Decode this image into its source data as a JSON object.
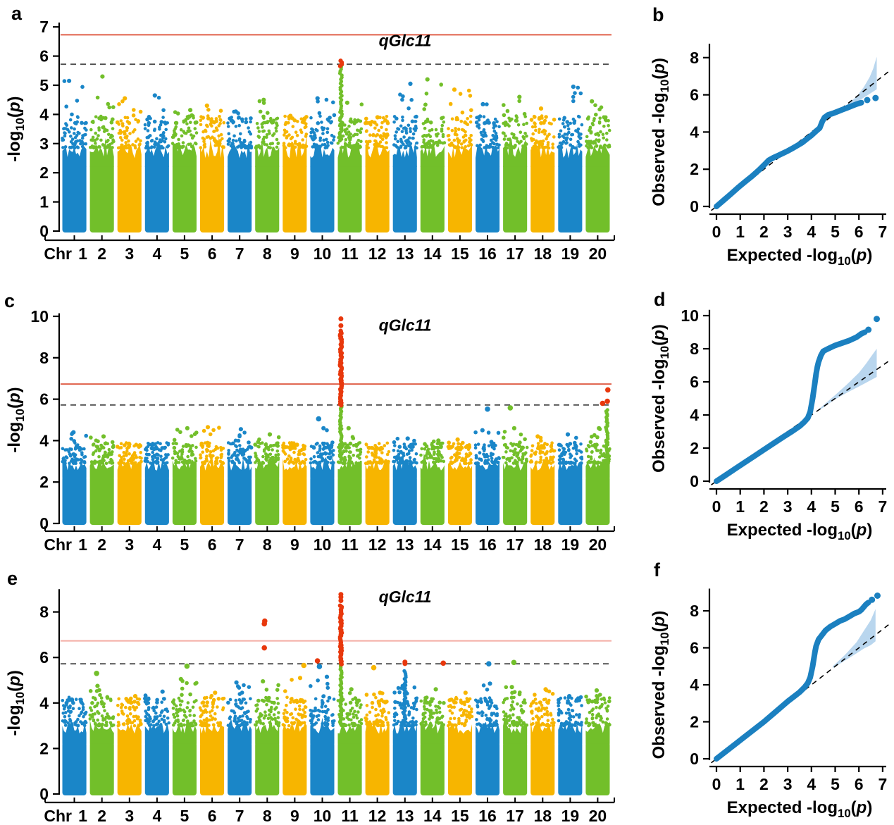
{
  "panels": {
    "a": {
      "letter": "a"
    },
    "b": {
      "letter": "b"
    },
    "c": {
      "letter": "c"
    },
    "d": {
      "letter": "d"
    },
    "e": {
      "letter": "e"
    },
    "f": {
      "letter": "f"
    }
  },
  "colors": {
    "chrom_cycle": [
      "#1a86c8",
      "#72bf2a",
      "#f7b500"
    ],
    "highlight_red": "#e8380d",
    "sig_line_strong": "#e0614a",
    "sig_line_light": "#f4aca4",
    "suggestive_line": "#4d4d4d",
    "qq_dot": "#1b80c0",
    "qq_band": "#b9d6ee",
    "axis": "#000000",
    "background": "#ffffff"
  },
  "labels": {
    "chr_axis_prefix": "Chr",
    "manhattan_ylabel": {
      "pre": "-log",
      "sub": "10",
      "open": "(",
      "var": "p",
      "close": ")"
    },
    "qq_xlabel": {
      "pre": "Expected -log",
      "sub": "10",
      "open": "(",
      "var": "p",
      "close": ")"
    },
    "qq_ylabel": {
      "pre": "Observed -log",
      "sub": "10",
      "open": "(",
      "var": "p",
      "close": ")"
    },
    "annotation_text": "qGlc11"
  },
  "chart_data": [
    {
      "panel": "a",
      "type": "scatter",
      "subtype": "manhattan",
      "xlabel": "Chr",
      "ylabel": "-log10(p)",
      "chromosomes": [
        "1",
        "2",
        "3",
        "4",
        "5",
        "6",
        "7",
        "8",
        "9",
        "10",
        "11",
        "12",
        "13",
        "14",
        "15",
        "16",
        "17",
        "18",
        "19",
        "20"
      ],
      "ylim": [
        0,
        7
      ],
      "yticks": [
        0,
        1,
        2,
        3,
        4,
        5,
        6,
        7
      ],
      "genome_wide_threshold": 6.73,
      "suggestive_threshold": 5.72,
      "threshold_line_style": "strong",
      "noise_ceiling_per_chr": [
        5.15,
        5.3,
        4.55,
        4.65,
        4.15,
        4.3,
        4.1,
        4.5,
        3.95,
        4.55,
        4.4,
        3.9,
        5.05,
        5.2,
        4.85,
        4.35,
        4.6,
        4.2,
        4.95,
        4.45
      ],
      "spikes": [
        {
          "chr": 11,
          "pos": 0.13,
          "chrom_color_to": 5.7,
          "red_from": 5.66,
          "red_to": 5.87,
          "red_dots": []
        }
      ],
      "extra_points": [],
      "annotation": {
        "text": "qGlc11",
        "x_chr": 11.55,
        "y": 6.34
      }
    },
    {
      "panel": "b",
      "type": "scatter",
      "subtype": "qq",
      "xlabel": "Expected -log10(p)",
      "ylabel": "Observed -log10(p)",
      "xlim": [
        0,
        7
      ],
      "ylim": [
        0,
        8
      ],
      "xticks": [
        0,
        1,
        2,
        3,
        4,
        5,
        6,
        7
      ],
      "yticks": [
        0,
        2,
        4,
        6,
        8
      ],
      "points": [
        [
          0,
          0
        ],
        [
          0.3,
          0.33
        ],
        [
          0.6,
          0.66
        ],
        [
          0.9,
          1.0
        ],
        [
          1.2,
          1.32
        ],
        [
          1.5,
          1.63
        ],
        [
          1.8,
          1.97
        ],
        [
          2.0,
          2.22
        ],
        [
          2.2,
          2.48
        ],
        [
          2.4,
          2.62
        ],
        [
          2.6,
          2.74
        ],
        [
          2.8,
          2.86
        ],
        [
          3.0,
          2.98
        ],
        [
          3.2,
          3.12
        ],
        [
          3.4,
          3.27
        ],
        [
          3.6,
          3.42
        ],
        [
          3.8,
          3.62
        ],
        [
          4.0,
          3.82
        ],
        [
          4.2,
          4.05
        ],
        [
          4.35,
          4.22
        ],
        [
          4.45,
          4.55
        ],
        [
          4.55,
          4.78
        ],
        [
          4.7,
          4.92
        ],
        [
          4.9,
          5.0
        ],
        [
          5.1,
          5.1
        ],
        [
          5.3,
          5.2
        ],
        [
          5.5,
          5.3
        ],
        [
          5.7,
          5.4
        ],
        [
          5.9,
          5.5
        ],
        [
          6.1,
          5.58
        ]
      ],
      "tail_points": [
        [
          6.35,
          5.72
        ],
        [
          6.7,
          5.83
        ]
      ],
      "band_upper": [
        [
          5.0,
          5.1
        ],
        [
          5.5,
          5.48
        ],
        [
          5.9,
          5.9
        ],
        [
          6.2,
          6.4
        ],
        [
          6.45,
          6.95
        ],
        [
          6.6,
          7.4
        ],
        [
          6.75,
          8.05
        ]
      ],
      "band_lower": [
        [
          5.0,
          5.0
        ],
        [
          5.5,
          5.3
        ],
        [
          5.9,
          5.6
        ],
        [
          6.2,
          5.85
        ],
        [
          6.45,
          6.05
        ],
        [
          6.75,
          6.3
        ]
      ],
      "diagonal": true
    },
    {
      "panel": "c",
      "type": "scatter",
      "subtype": "manhattan",
      "xlabel": "Chr",
      "ylabel": "-log10(p)",
      "chromosomes": [
        "1",
        "2",
        "3",
        "4",
        "5",
        "6",
        "7",
        "8",
        "9",
        "10",
        "11",
        "12",
        "13",
        "14",
        "15",
        "16",
        "17",
        "18",
        "19",
        "20"
      ],
      "ylim": [
        0,
        10
      ],
      "yticks": [
        0,
        2,
        4,
        6,
        8,
        10
      ],
      "genome_wide_threshold": 6.73,
      "suggestive_threshold": 5.72,
      "threshold_line_style": "strong",
      "noise_ceiling_per_chr": [
        4.4,
        4.2,
        3.85,
        3.6,
        4.6,
        4.65,
        4.55,
        4.3,
        3.8,
        4.6,
        4.6,
        3.6,
        4.1,
        4.0,
        4.05,
        4.5,
        4.6,
        4.2,
        4.3,
        4.6
      ],
      "spikes": [
        {
          "chr": 11,
          "pos": 0.13,
          "chrom_color_to": 5.7,
          "red_from": 5.7,
          "red_to": 9.3,
          "red_dots": [
            9.55,
            9.88
          ]
        },
        {
          "chr": 20,
          "pos": 0.88,
          "chrom_color_to": 5.5,
          "red_from": 0,
          "red_to": 0,
          "red_dots": []
        }
      ],
      "extra_points": [
        {
          "chr": 10,
          "pos": 0.35,
          "v": 5.05,
          "color": "chrom"
        },
        {
          "chr": 16,
          "pos": 0.5,
          "v": 5.52,
          "color": "chrom"
        },
        {
          "chr": 17,
          "pos": 0.3,
          "v": 5.58,
          "color": "chrom"
        },
        {
          "chr": 20,
          "pos": 0.7,
          "v": 5.8,
          "color": "red"
        },
        {
          "chr": 20,
          "pos": 0.9,
          "v": 5.9,
          "color": "red"
        },
        {
          "chr": 20,
          "pos": 0.92,
          "v": 6.45,
          "color": "red"
        }
      ],
      "annotation": {
        "text": "qGlc11",
        "x_chr": 11.55,
        "y": 9.3
      }
    },
    {
      "panel": "d",
      "type": "scatter",
      "subtype": "qq",
      "xlabel": "Expected -log10(p)",
      "ylabel": "Observed -log10(p)",
      "xlim": [
        0,
        7
      ],
      "ylim": [
        0,
        10
      ],
      "xticks": [
        0,
        1,
        2,
        3,
        4,
        5,
        6,
        7
      ],
      "yticks": [
        0,
        2,
        4,
        6,
        8,
        10
      ],
      "points": [
        [
          0,
          0
        ],
        [
          0.4,
          0.38
        ],
        [
          0.8,
          0.76
        ],
        [
          1.2,
          1.14
        ],
        [
          1.6,
          1.52
        ],
        [
          2.0,
          1.9
        ],
        [
          2.4,
          2.28
        ],
        [
          2.8,
          2.66
        ],
        [
          3.2,
          3.02
        ],
        [
          3.5,
          3.32
        ],
        [
          3.7,
          3.58
        ],
        [
          3.85,
          3.82
        ],
        [
          3.95,
          4.2
        ],
        [
          4.0,
          4.6
        ],
        [
          4.05,
          5.0
        ],
        [
          4.1,
          5.5
        ],
        [
          4.15,
          6.0
        ],
        [
          4.2,
          6.5
        ],
        [
          4.25,
          6.9
        ],
        [
          4.3,
          7.2
        ],
        [
          4.4,
          7.6
        ],
        [
          4.5,
          7.85
        ],
        [
          4.7,
          8.0
        ],
        [
          5.0,
          8.2
        ],
        [
          5.3,
          8.35
        ],
        [
          5.6,
          8.5
        ],
        [
          5.9,
          8.7
        ],
        [
          6.1,
          8.9
        ],
        [
          6.25,
          9.0
        ]
      ],
      "tail_points": [
        [
          6.4,
          9.15
        ],
        [
          6.75,
          9.8
        ]
      ],
      "band_upper": [
        [
          4.35,
          4.4
        ],
        [
          5.0,
          5.2
        ],
        [
          5.5,
          5.85
        ],
        [
          6.0,
          6.55
        ],
        [
          6.3,
          7.1
        ],
        [
          6.55,
          7.6
        ],
        [
          6.75,
          8.0
        ]
      ],
      "band_lower": [
        [
          4.35,
          4.3
        ],
        [
          5.0,
          4.95
        ],
        [
          5.5,
          5.35
        ],
        [
          6.0,
          5.72
        ],
        [
          6.3,
          5.95
        ],
        [
          6.75,
          6.3
        ]
      ],
      "diagonal": true
    },
    {
      "panel": "e",
      "type": "scatter",
      "subtype": "manhattan",
      "xlabel": "Chr",
      "ylabel": "-log10(p)",
      "chromosomes": [
        "1",
        "2",
        "3",
        "4",
        "5",
        "6",
        "7",
        "8",
        "9",
        "10",
        "11",
        "12",
        "13",
        "14",
        "15",
        "16",
        "17",
        "18",
        "19",
        "20"
      ],
      "ylim": [
        0,
        8
      ],
      "yticks": [
        0,
        2,
        4,
        6,
        8
      ],
      "genome_wide_threshold": 6.73,
      "suggestive_threshold": 5.72,
      "threshold_line_style": "light",
      "noise_ceiling_per_chr": [
        4.15,
        4.75,
        4.3,
        4.5,
        5.05,
        4.45,
        4.9,
        4.95,
        5.1,
        5.15,
        4.6,
        4.45,
        4.75,
        4.6,
        4.45,
        4.85,
        4.7,
        4.6,
        4.3,
        4.55
      ],
      "spikes": [
        {
          "chr": 11,
          "pos": 0.13,
          "chrom_color_to": 5.7,
          "red_from": 5.7,
          "red_to": 8.3,
          "red_dots": [
            8.5,
            8.65,
            8.77
          ]
        },
        {
          "chr": 13,
          "pos": 0.5,
          "chrom_color_to": 5.45,
          "red_from": 0,
          "red_to": 0,
          "red_dots": [
            5.73,
            5.8
          ]
        }
      ],
      "extra_points": [
        {
          "chr": 2,
          "pos": 0.28,
          "v": 5.3,
          "color": "chrom"
        },
        {
          "chr": 5,
          "pos": 0.6,
          "v": 5.62,
          "color": "chrom"
        },
        {
          "chr": 8,
          "pos": 0.38,
          "v": 6.42,
          "color": "red"
        },
        {
          "chr": 8,
          "pos": 0.38,
          "v": 7.48,
          "color": "red"
        },
        {
          "chr": 8,
          "pos": 0.4,
          "v": 7.6,
          "color": "red"
        },
        {
          "chr": 9,
          "pos": 0.88,
          "v": 5.65,
          "color": "chrom"
        },
        {
          "chr": 10,
          "pos": 0.3,
          "v": 5.85,
          "color": "red"
        },
        {
          "chr": 10,
          "pos": 0.38,
          "v": 5.6,
          "color": "chrom"
        },
        {
          "chr": 12,
          "pos": 0.35,
          "v": 5.55,
          "color": "chrom"
        },
        {
          "chr": 14,
          "pos": 0.95,
          "v": 5.75,
          "color": "red"
        },
        {
          "chr": 16,
          "pos": 0.55,
          "v": 5.72,
          "color": "chrom"
        },
        {
          "chr": 17,
          "pos": 0.45,
          "v": 5.78,
          "color": "chrom"
        }
      ],
      "annotation": {
        "text": "qGlc11",
        "x_chr": 11.55,
        "y": 8.42
      }
    },
    {
      "panel": "f",
      "type": "scatter",
      "subtype": "qq",
      "xlabel": "Expected -log10(p)",
      "ylabel": "Observed -log10(p)",
      "xlim": [
        0,
        7
      ],
      "ylim": [
        0,
        8
      ],
      "xticks": [
        0,
        1,
        2,
        3,
        4,
        5,
        6,
        7
      ],
      "yticks": [
        0,
        2,
        4,
        6,
        8
      ],
      "points": [
        [
          0,
          0
        ],
        [
          0.4,
          0.4
        ],
        [
          0.8,
          0.8
        ],
        [
          1.2,
          1.2
        ],
        [
          1.6,
          1.6
        ],
        [
          2.0,
          2.0
        ],
        [
          2.5,
          2.55
        ],
        [
          3.0,
          3.1
        ],
        [
          3.3,
          3.4
        ],
        [
          3.5,
          3.6
        ],
        [
          3.7,
          3.85
        ],
        [
          3.85,
          4.1
        ],
        [
          3.95,
          4.4
        ],
        [
          4.0,
          4.7
        ],
        [
          4.05,
          5.0
        ],
        [
          4.1,
          5.4
        ],
        [
          4.15,
          5.8
        ],
        [
          4.2,
          6.1
        ],
        [
          4.3,
          6.45
        ],
        [
          4.45,
          6.7
        ],
        [
          4.6,
          6.95
        ],
        [
          4.8,
          7.15
        ],
        [
          5.0,
          7.3
        ],
        [
          5.2,
          7.45
        ],
        [
          5.4,
          7.55
        ],
        [
          5.6,
          7.7
        ],
        [
          5.8,
          7.85
        ],
        [
          6.0,
          7.95
        ],
        [
          6.1,
          8.05
        ],
        [
          6.2,
          8.2
        ],
        [
          6.3,
          8.35
        ],
        [
          6.4,
          8.45
        ]
      ],
      "tail_points": [
        [
          6.55,
          8.6
        ],
        [
          6.78,
          8.82
        ]
      ],
      "band_upper": [
        [
          4.9,
          5.0
        ],
        [
          5.4,
          5.6
        ],
        [
          5.9,
          6.3
        ],
        [
          6.2,
          6.9
        ],
        [
          6.5,
          7.5
        ],
        [
          6.7,
          8.1
        ]
      ],
      "band_lower": [
        [
          4.9,
          4.9
        ],
        [
          5.4,
          5.3
        ],
        [
          5.9,
          5.7
        ],
        [
          6.2,
          5.95
        ],
        [
          6.5,
          6.15
        ],
        [
          6.7,
          6.35
        ]
      ],
      "diagonal": true
    }
  ]
}
